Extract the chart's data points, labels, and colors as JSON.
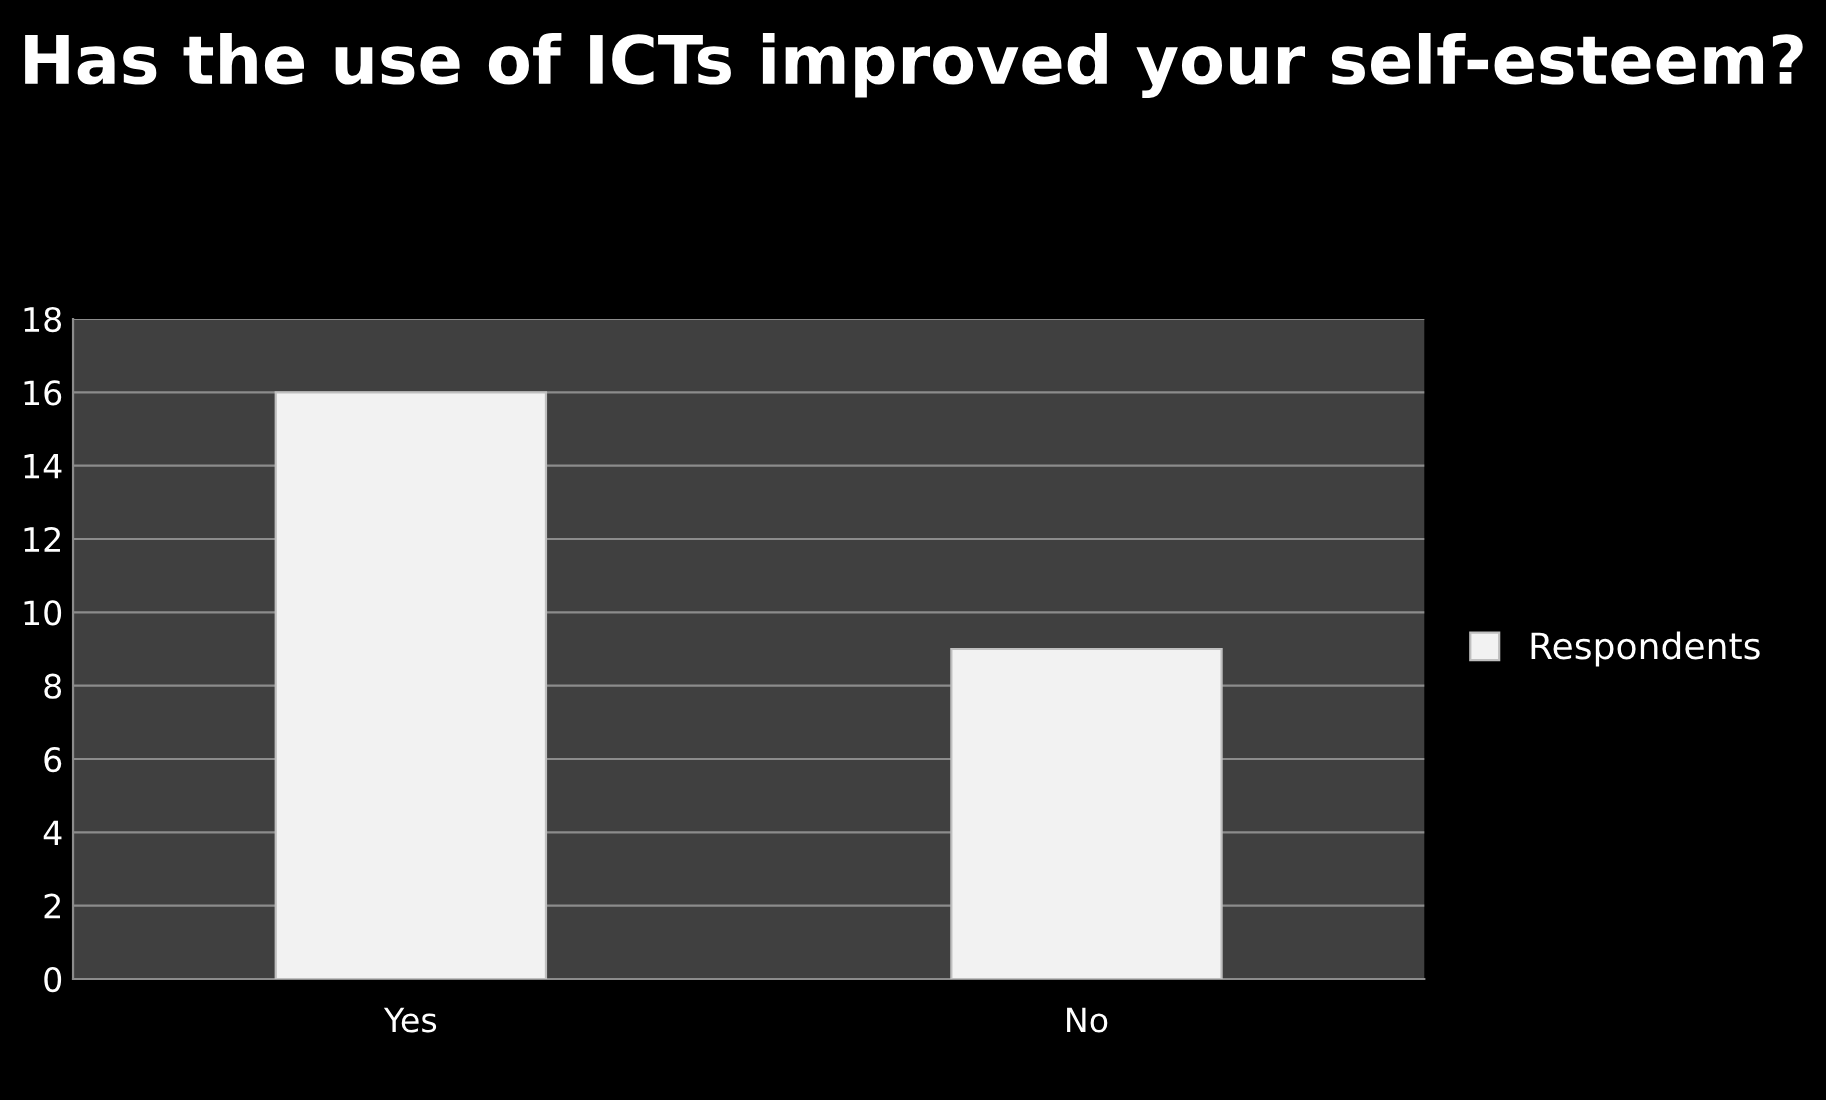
{
  "chart_data": {
    "type": "bar",
    "title": "Has the use of ICTs improved your self-esteem?",
    "categories": [
      "Yes",
      "No"
    ],
    "series": [
      {
        "name": "Respondents",
        "color": "#f2f2f2",
        "values": [
          16,
          9
        ]
      }
    ],
    "ylim": [
      0,
      18
    ],
    "yticks": [
      0,
      2,
      4,
      6,
      8,
      10,
      12,
      14,
      16,
      18
    ],
    "grid": "y",
    "legend": "right"
  }
}
